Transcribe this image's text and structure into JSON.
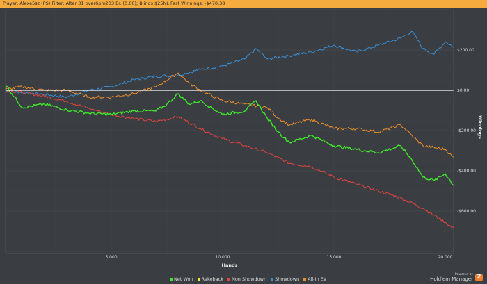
{
  "title_bar": "Player: Alexe5sz (PS) Filter: After 31 over6pm203 Er. (0.00); Blinds $25NL Fast Winnings: -$470,38",
  "branding": {
    "powered_by": "Powered by",
    "name": "Hold'em Manager",
    "badge": "2"
  },
  "chart_data": {
    "type": "line",
    "xlabel": "Hands",
    "ylabel": "Winnings",
    "xlim": [
      250,
      20400
    ],
    "ylim": [
      -810,
      400
    ],
    "x_ticks": [
      5000,
      10000,
      15000,
      20000
    ],
    "x_tick_labels": [
      "5 000",
      "10 000",
      "15 000",
      "20 000"
    ],
    "y_ticks": [
      200,
      0,
      -200,
      -400,
      -600
    ],
    "y_tick_labels": [
      "$200,00",
      "$0,00",
      "-$200,00",
      "-$400,00",
      "-$600,00"
    ],
    "grid": true,
    "legend_position": "bottom-center",
    "series": [
      {
        "name": "Net Won",
        "color": "#3ee82a",
        "x": [
          0,
          300,
          1000,
          2000,
          3000,
          4000,
          5000,
          6000,
          7000,
          7500,
          8000,
          8500,
          9000,
          10000,
          11000,
          11500,
          12000,
          12500,
          13000,
          14000,
          15000,
          16000,
          17000,
          18000,
          18500,
          19000,
          19500,
          20000,
          20400
        ],
        "y": [
          0,
          20,
          -86,
          -69,
          -97,
          -114,
          -120,
          -103,
          -103,
          -69,
          -17,
          -69,
          -52,
          -120,
          -103,
          -52,
          -138,
          -207,
          -259,
          -224,
          -276,
          -293,
          -310,
          -276,
          -345,
          -431,
          -448,
          -414,
          -476
        ]
      },
      {
        "name": "Rakeback",
        "color": "#f2e93a",
        "x": [],
        "y": []
      },
      {
        "name": "Non Showdown",
        "color": "#e2443f",
        "x": [
          0,
          1000,
          2000,
          3000,
          4000,
          5000,
          6000,
          7000,
          8000,
          9000,
          10000,
          11000,
          12000,
          13000,
          14000,
          15000,
          16000,
          17000,
          18000,
          19000,
          20000,
          20400
        ],
        "y": [
          0,
          -10,
          -30,
          -55,
          -90,
          -120,
          -140,
          -155,
          -131,
          -190,
          -241,
          -275,
          -310,
          -362,
          -379,
          -431,
          -466,
          -500,
          -534,
          -586,
          -655,
          -690
        ]
      },
      {
        "name": "Showdown",
        "color": "#3a8fd6",
        "x": [
          0,
          1000,
          2000,
          3000,
          4000,
          5000,
          6000,
          7000,
          8000,
          9000,
          10000,
          11000,
          11500,
          12000,
          13000,
          14000,
          15000,
          16000,
          17000,
          18000,
          18500,
          19000,
          19500,
          20000,
          20400
        ],
        "y": [
          0,
          -10,
          -20,
          -34,
          0,
          17,
          52,
          69,
          75,
          103,
          120,
          155,
          207,
          155,
          172,
          190,
          224,
          190,
          224,
          259,
          293,
          207,
          179,
          241,
          214
        ]
      },
      {
        "name": "All-In EV",
        "color": "#ef8f2a",
        "x": [
          0,
          1000,
          2000,
          3000,
          4000,
          5000,
          6000,
          7000,
          8000,
          8500,
          9000,
          10000,
          11000,
          12000,
          12500,
          13000,
          14000,
          15000,
          16000,
          17000,
          18000,
          18500,
          19000,
          20000,
          20400
        ],
        "y": [
          0,
          17,
          0,
          0,
          -34,
          -34,
          -17,
          17,
          86,
          35,
          0,
          -52,
          -69,
          -86,
          -138,
          -172,
          -145,
          -190,
          -190,
          -207,
          -172,
          -224,
          -276,
          -293,
          -338
        ]
      }
    ]
  }
}
